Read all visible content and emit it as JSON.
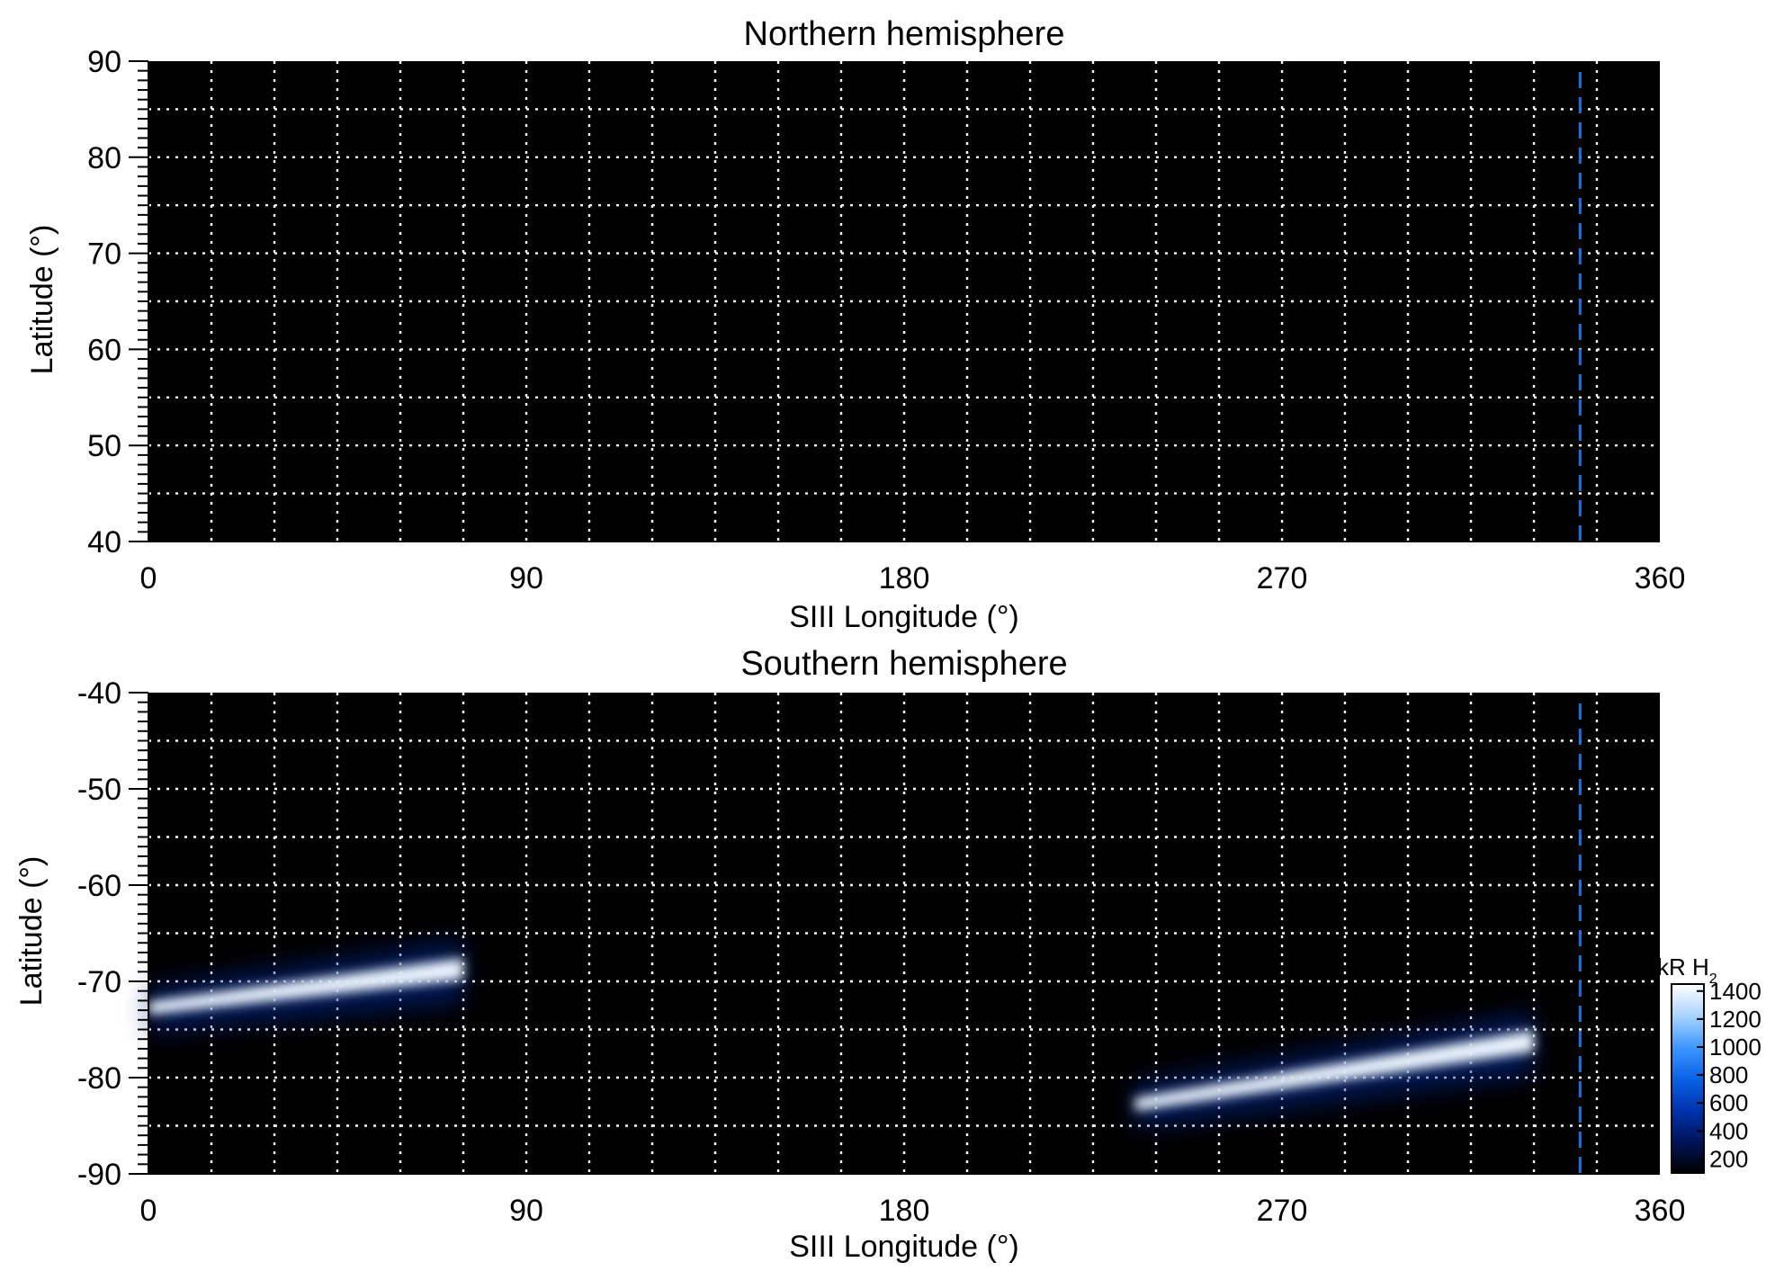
{
  "chart_data": [
    {
      "type": "heatmap",
      "title": "Northern hemisphere",
      "xlabel": "SIII Longitude (°)",
      "ylabel": "Latitude (°)",
      "xlim": [
        0,
        360
      ],
      "ylim": [
        40,
        90
      ],
      "x_ticks": [
        0,
        90,
        180,
        270,
        360
      ],
      "y_ticks": [
        40,
        50,
        60,
        70,
        80,
        90
      ],
      "x_grid_step": 15,
      "y_grid_step": 5,
      "grid": true,
      "reference_longitude": 341,
      "emission": []
    },
    {
      "type": "heatmap",
      "title": "Southern hemisphere",
      "xlabel": "SIII Longitude (°)",
      "ylabel": "Latitude (°)",
      "xlim": [
        0,
        360
      ],
      "ylim": [
        -90,
        -40
      ],
      "x_ticks": [
        0,
        90,
        180,
        270,
        360
      ],
      "y_ticks": [
        -40,
        -50,
        -60,
        -70,
        -80,
        -90
      ],
      "x_grid_step": 15,
      "y_grid_step": 5,
      "grid": true,
      "reference_longitude": 341,
      "emission": [
        {
          "lon": [
            0,
            75
          ],
          "lat_start": -72.5,
          "lat_end": -68.5,
          "peak": 1400
        },
        {
          "lon": [
            235,
            330
          ],
          "lat_start": -82.5,
          "lat_end": -76,
          "peak": 1400
        }
      ]
    }
  ],
  "colorbar": {
    "label_main": "kR H",
    "label_sub": "2",
    "ticks": [
      200,
      400,
      600,
      800,
      1000,
      1200,
      1400
    ],
    "range": [
      100,
      1450
    ],
    "colors": [
      "#000000",
      "#00135a",
      "#0033b0",
      "#0a63e6",
      "#3f98ff",
      "#a9d4ff",
      "#ffffff"
    ]
  },
  "colors": {
    "background": "#000000",
    "grid": "#ffffff",
    "reference_line": "#1e6fe0"
  }
}
